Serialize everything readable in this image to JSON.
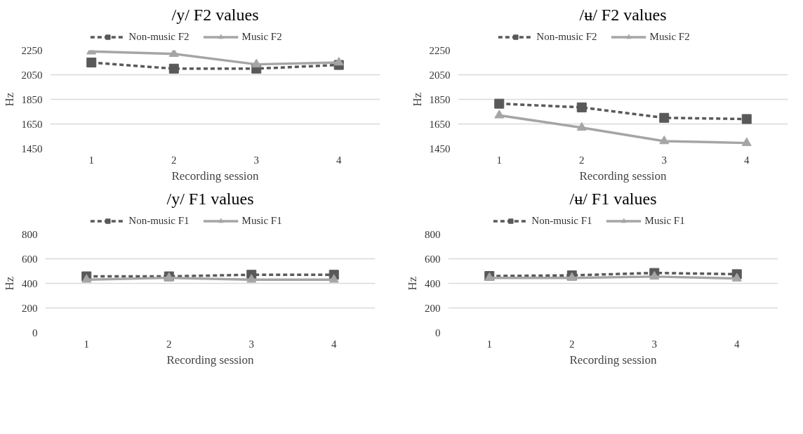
{
  "chart_data": [
    {
      "type": "line",
      "title": "/y/ F2 values",
      "xlabel": "Recording session",
      "ylabel": "Hz",
      "categories": [
        "1",
        "2",
        "3",
        "4"
      ],
      "ylim": [
        1450,
        2250
      ],
      "yticks": [
        1450,
        1650,
        1850,
        2050,
        2250
      ],
      "grid": "y",
      "legend": "top",
      "series": [
        {
          "name": "Non-music F2",
          "color": "#595959",
          "marker": "square",
          "line_style": "dashed",
          "values": [
            2150,
            2100,
            2100,
            2130
          ]
        },
        {
          "name": "Music F2",
          "color": "#a5a5a5",
          "marker": "triangle",
          "line_style": "solid",
          "values": [
            2240,
            2220,
            2135,
            2150
          ]
        }
      ]
    },
    {
      "type": "line",
      "title": "/ʉ/ F2 values",
      "xlabel": "Recording session",
      "ylabel": "Hz",
      "categories": [
        "1",
        "2",
        "3",
        "4"
      ],
      "ylim": [
        1450,
        2250
      ],
      "yticks": [
        1450,
        1650,
        1850,
        2050,
        2250
      ],
      "grid": "y",
      "legend": "top",
      "series": [
        {
          "name": "Non-music F2",
          "color": "#595959",
          "marker": "square",
          "line_style": "dashed",
          "values": [
            1815,
            1785,
            1700,
            1690
          ]
        },
        {
          "name": "Music F2",
          "color": "#a5a5a5",
          "marker": "triangle",
          "line_style": "solid",
          "values": [
            1720,
            1620,
            1510,
            1495
          ]
        }
      ]
    },
    {
      "type": "line",
      "title": "/y/ F1 values",
      "xlabel": "Recording session",
      "ylabel": "Hz",
      "categories": [
        "1",
        "2",
        "3",
        "4"
      ],
      "ylim": [
        0,
        800
      ],
      "yticks": [
        0,
        200,
        400,
        600,
        800
      ],
      "grid": "y",
      "legend": "top",
      "series": [
        {
          "name": "Non-music F1",
          "color": "#595959",
          "marker": "square",
          "line_style": "dashed",
          "values": [
            457,
            457,
            470,
            470
          ]
        },
        {
          "name": "Music F1",
          "color": "#a5a5a5",
          "marker": "triangle",
          "line_style": "solid",
          "values": [
            430,
            445,
            430,
            430
          ]
        }
      ]
    },
    {
      "type": "line",
      "title": "/ʉ/ F1 values",
      "xlabel": "Recording session",
      "ylabel": "Hz",
      "categories": [
        "1",
        "2",
        "3",
        "4"
      ],
      "ylim": [
        0,
        800
      ],
      "yticks": [
        0,
        200,
        400,
        600,
        800
      ],
      "grid": "y",
      "legend": "top",
      "series": [
        {
          "name": "Non-music F1",
          "color": "#595959",
          "marker": "square",
          "line_style": "dashed",
          "values": [
            460,
            465,
            485,
            475
          ]
        },
        {
          "name": "Music F1",
          "color": "#a5a5a5",
          "marker": "triangle",
          "line_style": "solid",
          "values": [
            445,
            445,
            455,
            440
          ]
        }
      ]
    }
  ]
}
